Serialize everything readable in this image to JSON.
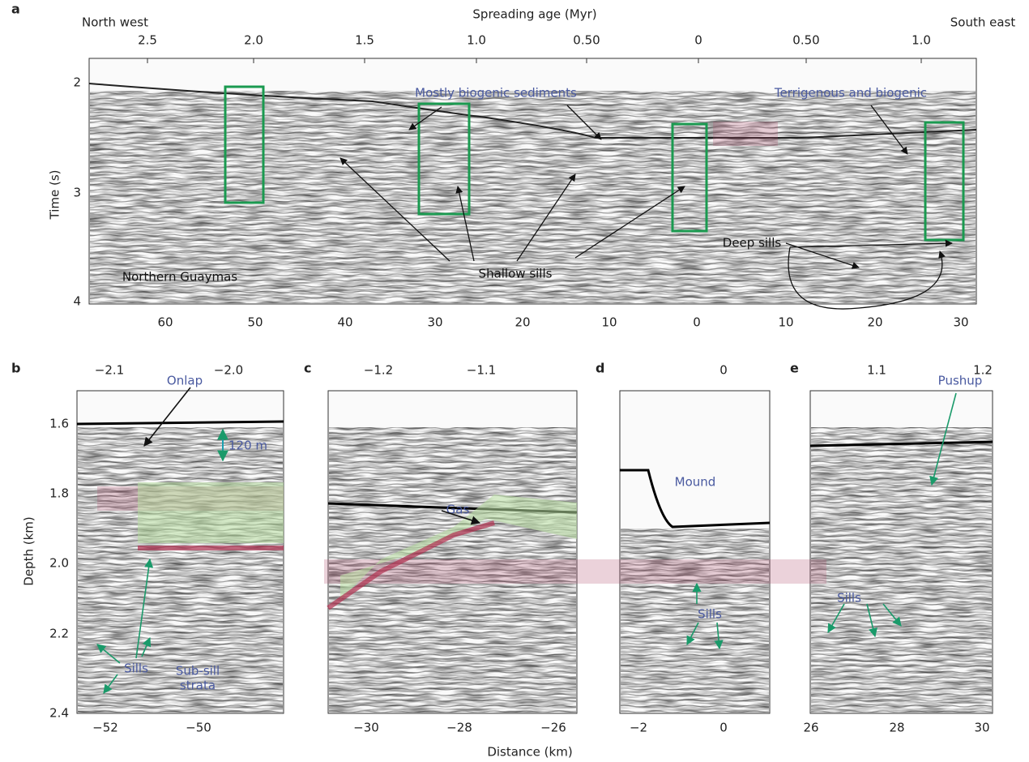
{
  "panels": [
    {
      "letter": "a",
      "top_axis": {
        "title": "Spreading age (Myr)",
        "left_label": "North west",
        "right_label": "South east",
        "ticks": [
          "2.5",
          "2.0",
          "1.5",
          "1.0",
          "0.50",
          "0",
          "0.50",
          "1.0"
        ]
      },
      "y_axis": {
        "title": "Time (s)",
        "ticks": [
          "2",
          "3",
          "4"
        ]
      },
      "bottom_ticks": [
        "60",
        "50",
        "40",
        "30",
        "20",
        "10",
        "0",
        "10",
        "20",
        "30"
      ],
      "annotations": [
        "Mostly biogenic sediments",
        "Terrigenous and biogenic",
        "Shallow sills",
        "Deep sills",
        "Northern Guaymas"
      ]
    },
    {
      "letter": "b",
      "top_ticks": [
        "−2.1",
        "−2.0"
      ],
      "bottom_ticks": [
        "−52",
        "−50"
      ],
      "annotations": [
        "Onlap",
        "120 m",
        "Sills",
        "Sub-sill",
        "strata"
      ]
    },
    {
      "letter": "c",
      "top_ticks": [
        "−1.2",
        "−1.1"
      ],
      "bottom_ticks": [
        "−30",
        "−28",
        "−26"
      ],
      "annotations": [
        "Gas"
      ]
    },
    {
      "letter": "d",
      "top_ticks": [
        "0"
      ],
      "bottom_ticks": [
        "−2",
        "0"
      ],
      "annotations": [
        "Mound",
        "Sills"
      ]
    },
    {
      "letter": "e",
      "top_ticks": [
        "1.1",
        "1.2"
      ],
      "bottom_ticks": [
        "26",
        "28",
        "30"
      ],
      "annotations": [
        "Pushup",
        "Sills"
      ]
    }
  ],
  "shared": {
    "y_axis_title": "Depth (km)",
    "y_ticks": [
      "1.6",
      "1.8",
      "2.0",
      "2.2",
      "2.4"
    ],
    "x_axis_title": "Distance (km)"
  }
}
